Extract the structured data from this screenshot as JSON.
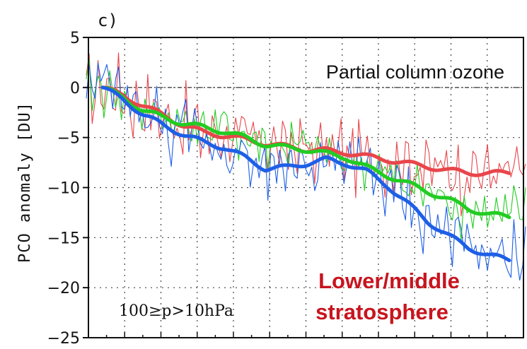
{
  "chart_data": {
    "type": "line",
    "panel_label": "c)",
    "title": "",
    "ylabel": "PCO anomaly [DU]",
    "xlabel": "",
    "ylim": [
      -25,
      5
    ],
    "yticks": [
      5,
      0,
      -5,
      -10,
      -15,
      -20,
      -25
    ],
    "grid": true,
    "annotations": {
      "inset_title": "Partial column ozone",
      "pressure_range": "100≥p>10hPa",
      "region_line1": "Lower/middle",
      "region_line2": "stratosphere"
    },
    "colors": {
      "red": "#e8464b",
      "green": "#22cc22",
      "blue": "#1e5fe6"
    },
    "x": [
      0,
      0.05,
      0.1,
      0.15,
      0.2,
      0.25,
      0.3,
      0.35,
      0.4,
      0.45,
      0.5,
      0.55,
      0.6,
      0.65,
      0.7,
      0.75,
      0.8,
      0.85,
      0.9,
      0.95,
      1.0
    ],
    "series": [
      {
        "color": "red",
        "values": [
          0.0,
          -0.8,
          -1.8,
          -2.8,
          -3.8,
          -4.5,
          -4.8,
          -5.2,
          -5.6,
          -5.9,
          -6.2,
          -6.3,
          -6.5,
          -6.9,
          -7.2,
          -7.6,
          -7.9,
          -8.3,
          -8.5,
          -8.6,
          -8.5
        ]
      },
      {
        "color": "green",
        "values": [
          0.0,
          -1.0,
          -2.3,
          -3.0,
          -3.6,
          -4.0,
          -4.4,
          -5.0,
          -5.7,
          -6.0,
          -6.2,
          -6.6,
          -7.0,
          -8.0,
          -8.8,
          -9.6,
          -10.4,
          -11.2,
          -12.1,
          -12.7,
          -12.9
        ]
      },
      {
        "color": "blue",
        "values": [
          0.0,
          -1.2,
          -2.7,
          -3.8,
          -4.7,
          -5.5,
          -6.0,
          -7.0,
          -8.1,
          -8.0,
          -7.6,
          -7.2,
          -7.6,
          -8.4,
          -9.8,
          -11.6,
          -13.4,
          -14.8,
          -16.0,
          -16.8,
          -17.2
        ]
      }
    ]
  }
}
